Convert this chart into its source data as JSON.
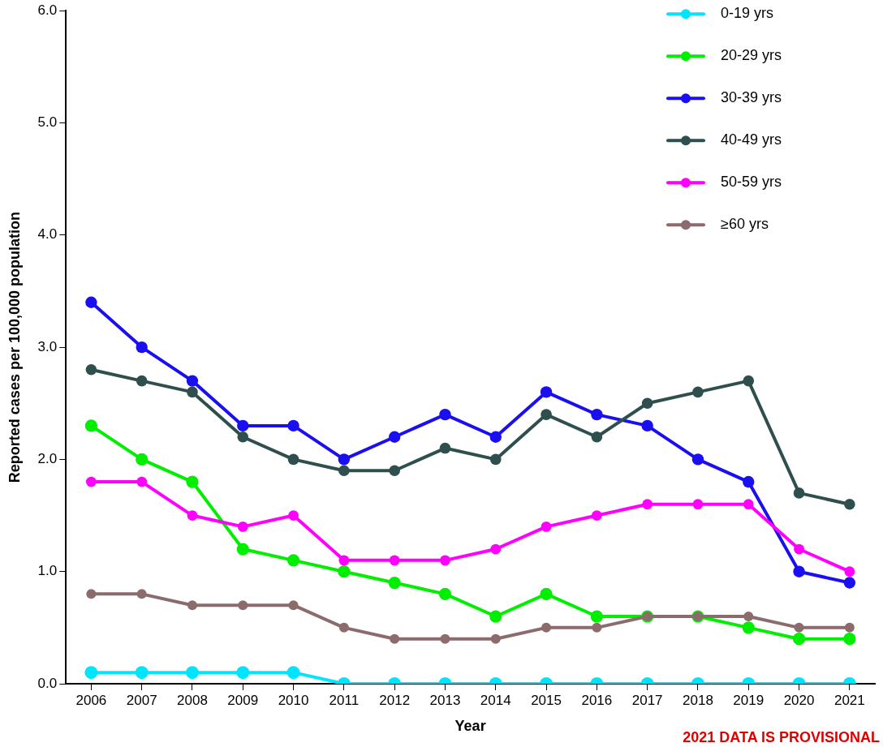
{
  "chart_data": {
    "type": "line",
    "xlabel": "Year",
    "ylabel": "Reported cases per 100,000 population",
    "categories": [
      "2006",
      "2007",
      "2008",
      "2009",
      "2010",
      "2011",
      "2012",
      "2013",
      "2014",
      "2015",
      "2016",
      "2017",
      "2018",
      "2019",
      "2020",
      "2021"
    ],
    "series": [
      {
        "name": "0-19 yrs",
        "color": "#00e5ff",
        "values": [
          0.1,
          0.1,
          0.1,
          0.1,
          0.1,
          0,
          0,
          0,
          0,
          0,
          0,
          0,
          0,
          0,
          0,
          0
        ]
      },
      {
        "name": "20-29 yrs",
        "color": "#00ee00",
        "values": [
          2.3,
          2.0,
          1.8,
          1.2,
          1.1,
          1.0,
          0.9,
          0.8,
          0.6,
          0.8,
          0.6,
          0.6,
          0.6,
          0.5,
          0.4,
          0.4
        ]
      },
      {
        "name": "30-39 yrs",
        "color": "#1a0ff0",
        "values": [
          3.4,
          3.0,
          2.7,
          2.3,
          2.3,
          2.0,
          2.2,
          2.4,
          2.2,
          2.6,
          2.4,
          2.3,
          2.0,
          1.8,
          1.0,
          0.9
        ]
      },
      {
        "name": "40-49 yrs",
        "color": "#2f4f4f",
        "values": [
          2.8,
          2.7,
          2.6,
          2.2,
          2.0,
          1.9,
          1.9,
          2.1,
          2.0,
          2.4,
          2.2,
          2.5,
          2.6,
          2.7,
          1.7,
          1.6
        ]
      },
      {
        "name": "50-59 yrs",
        "color": "#ff00ff",
        "values": [
          1.8,
          1.8,
          1.5,
          1.4,
          1.5,
          1.1,
          1.1,
          1.1,
          1.2,
          1.4,
          1.5,
          1.6,
          1.6,
          1.6,
          1.2,
          1.0
        ]
      },
      {
        "name": "≥60 yrs",
        "color": "#8b6b6b",
        "values": [
          0.8,
          0.8,
          0.7,
          0.7,
          0.7,
          0.5,
          0.4,
          0.4,
          0.4,
          0.5,
          0.5,
          0.6,
          0.6,
          0.6,
          0.5,
          0.5
        ]
      }
    ],
    "ylim": [
      0,
      6
    ],
    "yticks": [
      {
        "value": 0,
        "label": "0.0"
      },
      {
        "value": 1,
        "label": "1.0"
      },
      {
        "value": 2,
        "label": "2.0"
      },
      {
        "value": 3,
        "label": "3.0"
      },
      {
        "value": 4,
        "label": "4.0"
      },
      {
        "value": 5,
        "label": "5.0"
      },
      {
        "value": 6,
        "label": "6.0"
      }
    ],
    "grid": false,
    "legend": "top right",
    "marker": "circle",
    "line_style": "solid",
    "annotations": [
      "2021 DATA IS PROVISIONAL"
    ]
  }
}
